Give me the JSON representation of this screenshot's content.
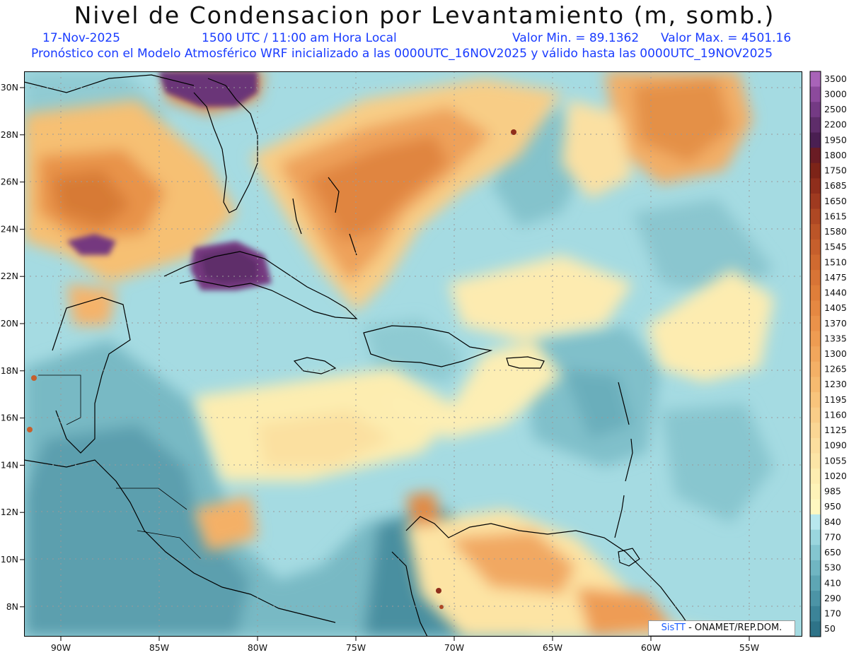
{
  "header": {
    "title": "Nivel de Condensacion por Levantamiento (m, somb.)",
    "date": "17-Nov-2025",
    "time": "1500 UTC / 11:00 am Hora Local",
    "min_value": "Valor Min. = 89.1362",
    "max_value": "Valor Max. = 4501.16",
    "model_info": "Pronóstico con el Modelo Atmosférico WRF inicializado a las 0000UTC_16NOV2025 y válido hasta las  0000UTC_19NOV2025"
  },
  "map": {
    "lat_labels": [
      "30N",
      "28N",
      "26N",
      "24N",
      "22N",
      "20N",
      "18N",
      "16N",
      "14N",
      "12N",
      "10N",
      "8N"
    ],
    "lon_labels": [
      "90W",
      "85W",
      "80W",
      "75W",
      "70W",
      "65W",
      "60W",
      "55W"
    ]
  },
  "colorbar": {
    "labels": [
      "3500",
      "3000",
      "2500",
      "2200",
      "1950",
      "1800",
      "1750",
      "1685",
      "1650",
      "1615",
      "1580",
      "1545",
      "1510",
      "1475",
      "1440",
      "1405",
      "1370",
      "1335",
      "1300",
      "1265",
      "1230",
      "1195",
      "1160",
      "1125",
      "1090",
      "1055",
      "1020",
      "985",
      "950",
      "840",
      "770",
      "650",
      "530",
      "410",
      "290",
      "170",
      "50"
    ],
    "colors": [
      "#a863b8",
      "#8c4a9c",
      "#743a84",
      "#5e2d6a",
      "#4a1f52",
      "#6a1c24",
      "#7d2418",
      "#8f2e1c",
      "#9f3a20",
      "#ae4824",
      "#bb5528",
      "#c65f2c",
      "#d06a30",
      "#d87436",
      "#df7e3a",
      "#e58842",
      "#ea924a",
      "#ee9c52",
      "#f1a65c",
      "#f4b066",
      "#f6ba70",
      "#f8c47c",
      "#f9cd88",
      "#fad694",
      "#fbde9e",
      "#fce5a6",
      "#fdedb0",
      "#fef3b8",
      "#fff8c0",
      "#b8e8ee",
      "#9ad6de",
      "#84c6d0",
      "#70b6c2",
      "#5ea6b4",
      "#4c94a6",
      "#3c8498",
      "#2e7388"
    ]
  },
  "credit": {
    "sis": "SisTT",
    "org": " - ONAMET/REP.DOM."
  }
}
